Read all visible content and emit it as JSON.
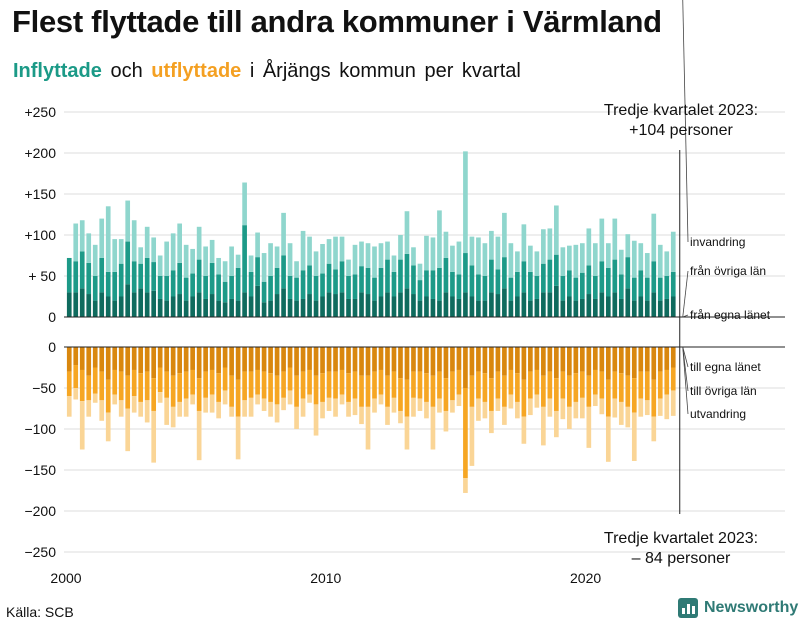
{
  "title": "Flest flyttade till andra kommuner i Värmland",
  "subtitle": {
    "inflow": "Inflyttade",
    "and": "och",
    "outflow": "utflyttade",
    "rest": "i Årjängs  kommun  per  kvartal"
  },
  "source": "Källa: SCB",
  "brand": "Newsworthy",
  "annotation_top": {
    "line1": "Tredje kvartalet 2023:",
    "line2": "+104 personer"
  },
  "annotation_bottom": {
    "line1": "Tredje kvartalet 2023:",
    "line2": "– 84 personer"
  },
  "colors": {
    "in_local": "#0f6b5e",
    "in_region": "#1d9a88",
    "in_abroad": "#8fd6cd",
    "out_local": "#d9870e",
    "out_region": "#f6a623",
    "out_abroad": "#fad596",
    "grid": "#dcdcdc",
    "text": "#111111"
  },
  "chart_data": {
    "type": "bar",
    "subtype": "stacked-diverging",
    "title": "Flest flyttade till andra kommuner i Värmland",
    "start": {
      "year": 2000,
      "quarter": 1
    },
    "end": {
      "year": 2023,
      "quarter": 3
    },
    "ylim_top": [
      0,
      250
    ],
    "ylim_bottom": [
      -250,
      0
    ],
    "yticks_top": [
      {
        "v": 0,
        "label": "0"
      },
      {
        "v": 50,
        "label": "+ 50"
      },
      {
        "v": 100,
        "label": "+100"
      },
      {
        "v": 150,
        "label": "+150"
      },
      {
        "v": 200,
        "label": "+200"
      },
      {
        "v": 250,
        "label": "+250"
      }
    ],
    "yticks_bottom": [
      {
        "v": 0,
        "label": "0"
      },
      {
        "v": -50,
        "label": "−50"
      },
      {
        "v": -100,
        "label": "−100"
      },
      {
        "v": -150,
        "label": "−150"
      },
      {
        "v": -200,
        "label": "−200"
      },
      {
        "v": -250,
        "label": "−250"
      }
    ],
    "xticks": [
      {
        "year": 2000,
        "label": "2000"
      },
      {
        "year": 2010,
        "label": "2010"
      },
      {
        "year": 2020,
        "label": "2020"
      }
    ],
    "inflow_series": [
      {
        "name": "från egna länet",
        "key": "in_local",
        "values": [
          30,
          30,
          35,
          28,
          20,
          30,
          25,
          20,
          25,
          40,
          30,
          35,
          30,
          32,
          22,
          20,
          25,
          28,
          20,
          25,
          30,
          22,
          28,
          20,
          18,
          22,
          20,
          30,
          25,
          38,
          18,
          20,
          28,
          35,
          22,
          20,
          22,
          28,
          20,
          25,
          30,
          28,
          30,
          22,
          22,
          30,
          28,
          20,
          25,
          30,
          25,
          30,
          35,
          28,
          20,
          25,
          22,
          20,
          30,
          25,
          22,
          30,
          25,
          20,
          20,
          30,
          28,
          35,
          20,
          25,
          30,
          20,
          22,
          30,
          30,
          38,
          20,
          25,
          20,
          22,
          28,
          22,
          30,
          25,
          30,
          22,
          35,
          20,
          25,
          20,
          30,
          20,
          22,
          25
        ]
      },
      {
        "name": "från övriga län",
        "key": "in_region",
        "values": [
          42,
          38,
          45,
          38,
          30,
          42,
          30,
          35,
          40,
          52,
          38,
          30,
          42,
          35,
          28,
          30,
          32,
          38,
          28,
          28,
          40,
          28,
          38,
          32,
          25,
          28,
          40,
          82,
          30,
          35,
          25,
          30,
          32,
          40,
          28,
          28,
          35,
          35,
          30,
          28,
          35,
          30,
          38,
          28,
          30,
          32,
          32,
          28,
          35,
          40,
          30,
          40,
          42,
          35,
          25,
          32,
          35,
          40,
          42,
          30,
          30,
          48,
          38,
          32,
          30,
          40,
          30,
          38,
          28,
          30,
          38,
          35,
          28,
          35,
          40,
          38,
          30,
          32,
          28,
          32,
          35,
          28,
          38,
          35,
          40,
          30,
          38,
          28,
          32,
          28,
          38,
          28,
          28,
          30
        ]
      },
      {
        "name": "invandring",
        "key": "in_abroad",
        "values": [
          0,
          46,
          38,
          36,
          38,
          48,
          80,
          40,
          30,
          50,
          50,
          20,
          38,
          30,
          25,
          42,
          45,
          48,
          40,
          30,
          40,
          36,
          28,
          20,
          25,
          36,
          16,
          52,
          20,
          30,
          35,
          40,
          26,
          52,
          40,
          20,
          48,
          35,
          30,
          36,
          30,
          40,
          30,
          20,
          36,
          30,
          30,
          38,
          30,
          22,
          20,
          30,
          52,
          22,
          20,
          42,
          40,
          70,
          32,
          32,
          40,
          124,
          35,
          45,
          40,
          35,
          40,
          54,
          42,
          25,
          45,
          32,
          30,
          42,
          38,
          60,
          35,
          30,
          40,
          36,
          45,
          40,
          52,
          30,
          50,
          30,
          28,
          45,
          33,
          30,
          58,
          40,
          30,
          49
        ]
      },
      {
        "name": "total",
        "key": "total",
        "values": [
          72,
          114,
          118,
          102,
          88,
          120,
          135,
          95,
          95,
          142,
          118,
          85,
          110,
          97,
          75,
          92,
          102,
          114,
          88,
          83,
          110,
          86,
          94,
          72,
          68,
          86,
          76,
          164,
          75,
          103,
          78,
          90,
          86,
          127,
          90,
          68,
          105,
          98,
          80,
          89,
          95,
          98,
          98,
          70,
          88,
          92,
          90,
          86,
          90,
          92,
          75,
          100,
          129,
          85,
          65,
          99,
          97,
          130,
          104,
          87,
          92,
          202,
          98,
          97,
          90,
          105,
          98,
          127,
          90,
          80,
          113,
          87,
          80,
          107,
          108,
          136,
          85,
          87,
          88,
          90,
          108,
          90,
          120,
          90,
          120,
          82,
          101,
          93,
          90,
          78,
          126,
          88,
          80,
          104
        ]
      }
    ],
    "outflow_series": [
      {
        "name": "till egna länet",
        "key": "out_local",
        "values": [
          -30,
          -22,
          -28,
          -35,
          -25,
          -30,
          -40,
          -28,
          -30,
          -35,
          -28,
          -32,
          -30,
          -38,
          -25,
          -30,
          -35,
          -32,
          -30,
          -28,
          -38,
          -30,
          -28,
          -32,
          -25,
          -35,
          -40,
          -30,
          -30,
          -28,
          -30,
          -32,
          -35,
          -30,
          -25,
          -35,
          -30,
          -28,
          -35,
          -32,
          -30,
          -30,
          -28,
          -32,
          -30,
          -35,
          -35,
          -30,
          -28,
          -35,
          -30,
          -38,
          -40,
          -30,
          -30,
          -32,
          -35,
          -30,
          -38,
          -30,
          -28,
          -50,
          -35,
          -30,
          -32,
          -38,
          -30,
          -35,
          -28,
          -32,
          -40,
          -30,
          -28,
          -35,
          -30,
          -38,
          -30,
          -35,
          -32,
          -30,
          -35,
          -28,
          -30,
          -40,
          -30,
          -32,
          -35,
          -38,
          -30,
          -30,
          -40,
          -30,
          -28,
          -25
        ]
      },
      {
        "name": "till övriga län",
        "key": "out_region",
        "values": [
          -30,
          -28,
          -38,
          -30,
          -32,
          -35,
          -40,
          -30,
          -35,
          -40,
          -32,
          -35,
          -35,
          -40,
          -30,
          -32,
          -38,
          -35,
          -33,
          -30,
          -40,
          -32,
          -30,
          -35,
          -28,
          -38,
          -45,
          -35,
          -32,
          -30,
          -33,
          -35,
          -35,
          -32,
          -28,
          -38,
          -33,
          -30,
          -35,
          -35,
          -32,
          -33,
          -30,
          -35,
          -33,
          -38,
          -38,
          -33,
          -30,
          -38,
          -32,
          -40,
          -45,
          -32,
          -33,
          -35,
          -38,
          -33,
          -40,
          -35,
          -30,
          -110,
          -38,
          -33,
          -35,
          -40,
          -33,
          -38,
          -30,
          -35,
          -45,
          -33,
          -30,
          -38,
          -33,
          -40,
          -33,
          -38,
          -35,
          -32,
          -38,
          -30,
          -33,
          -45,
          -33,
          -35,
          -38,
          -42,
          -33,
          -35,
          -45,
          -33,
          -30,
          -28
        ]
      },
      {
        "name": "utvandring",
        "key": "out_abroad",
        "values": [
          -25,
          -14,
          -59,
          -20,
          -11,
          -25,
          -35,
          -12,
          -20,
          -52,
          -20,
          -18,
          -27,
          -63,
          -13,
          -33,
          -25,
          -18,
          -22,
          -12,
          -60,
          -18,
          -22,
          -20,
          -17,
          -12,
          -52,
          -20,
          -23,
          -12,
          -15,
          -18,
          -22,
          -15,
          -17,
          -27,
          -22,
          -10,
          -38,
          -20,
          -16,
          -22,
          -12,
          -18,
          -20,
          -21,
          -52,
          -17,
          -12,
          -22,
          -18,
          -15,
          -40,
          -23,
          -15,
          -20,
          -52,
          -17,
          -25,
          -15,
          -14,
          -18,
          -72,
          -27,
          -20,
          -27,
          -15,
          -22,
          -17,
          -20,
          -33,
          -20,
          -16,
          -47,
          -22,
          -32,
          -25,
          -27,
          -20,
          -25,
          -50,
          -14,
          -19,
          -55,
          -23,
          -28,
          -25,
          -59,
          -22,
          -18,
          -30,
          -21,
          -30,
          -31
        ]
      },
      {
        "name": "total",
        "key": "total",
        "values": [
          -85,
          -64,
          -125,
          -85,
          -68,
          -90,
          -115,
          -70,
          -85,
          -127,
          -80,
          -85,
          -92,
          -141,
          -68,
          -95,
          -98,
          -85,
          -85,
          -70,
          -138,
          -80,
          -80,
          -87,
          -70,
          -85,
          -137,
          -85,
          -85,
          -70,
          -78,
          -85,
          -92,
          -77,
          -70,
          -100,
          -85,
          -68,
          -108,
          -87,
          -78,
          -85,
          -70,
          -85,
          -83,
          -94,
          -125,
          -80,
          -70,
          -95,
          -80,
          -93,
          -125,
          -85,
          -78,
          -87,
          -125,
          -80,
          -103,
          -80,
          -72,
          -178,
          -145,
          -90,
          -87,
          -105,
          -78,
          -95,
          -75,
          -87,
          -118,
          -83,
          -74,
          -120,
          -85,
          -110,
          -88,
          -100,
          -87,
          -87,
          -123,
          -72,
          -82,
          -140,
          -86,
          -95,
          -98,
          -140,
          -85,
          -83,
          -115,
          -84,
          -88,
          -84
        ]
      }
    ],
    "legend_in": [
      "invandring",
      "från övriga län",
      "från egna länet"
    ],
    "legend_out": [
      "till egna länet",
      "till övriga län",
      "utvandring"
    ]
  }
}
